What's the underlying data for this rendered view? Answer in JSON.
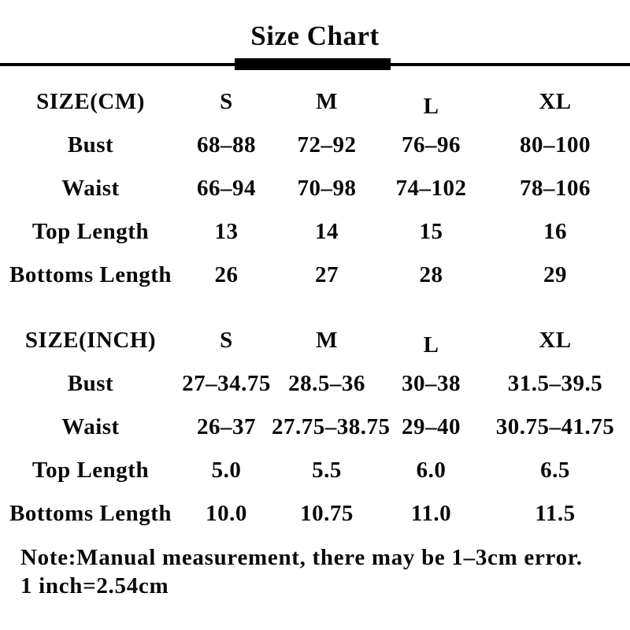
{
  "title": "Size Chart",
  "tables": [
    {
      "header": {
        "label": "SIZE(CM)",
        "sizes": [
          "S",
          "M",
          "L",
          "XL"
        ]
      },
      "rows": [
        {
          "label": "Bust",
          "values": [
            "68–88",
            "72–92",
            "76–96",
            "80–100"
          ]
        },
        {
          "label": "Waist",
          "values": [
            "66–94",
            "70–98",
            "74–102",
            "78–106"
          ]
        },
        {
          "label": "Top Length",
          "values": [
            "13",
            "14",
            "15",
            "16"
          ]
        },
        {
          "label": "Bottoms Length",
          "values": [
            "26",
            "27",
            "28",
            "29"
          ]
        }
      ]
    },
    {
      "header": {
        "label": "SIZE(INCH)",
        "sizes": [
          "S",
          "M",
          "L",
          "XL"
        ]
      },
      "rows": [
        {
          "label": "Bust",
          "values": [
            "27–34.75",
            "28.5–36",
            "30–38",
            "31.5–39.5"
          ]
        },
        {
          "label": "Waist",
          "values": [
            "26–37",
            "27.75–38.75",
            "29–40",
            "30.75–41.75"
          ]
        },
        {
          "label": "Top Length",
          "values": [
            "5.0",
            "5.5",
            "6.0",
            "6.5"
          ]
        },
        {
          "label": "Bottoms Length",
          "values": [
            "10.0",
            "10.75",
            "11.0",
            "11.5"
          ]
        }
      ]
    }
  ],
  "note": {
    "line1": "Note:Manual measurement, there may be 1–3cm error.",
    "line2": "1 inch=2.54cm"
  },
  "colors": {
    "text": "#0a0a0a",
    "background": "#ffffff",
    "divider": "#000000"
  }
}
